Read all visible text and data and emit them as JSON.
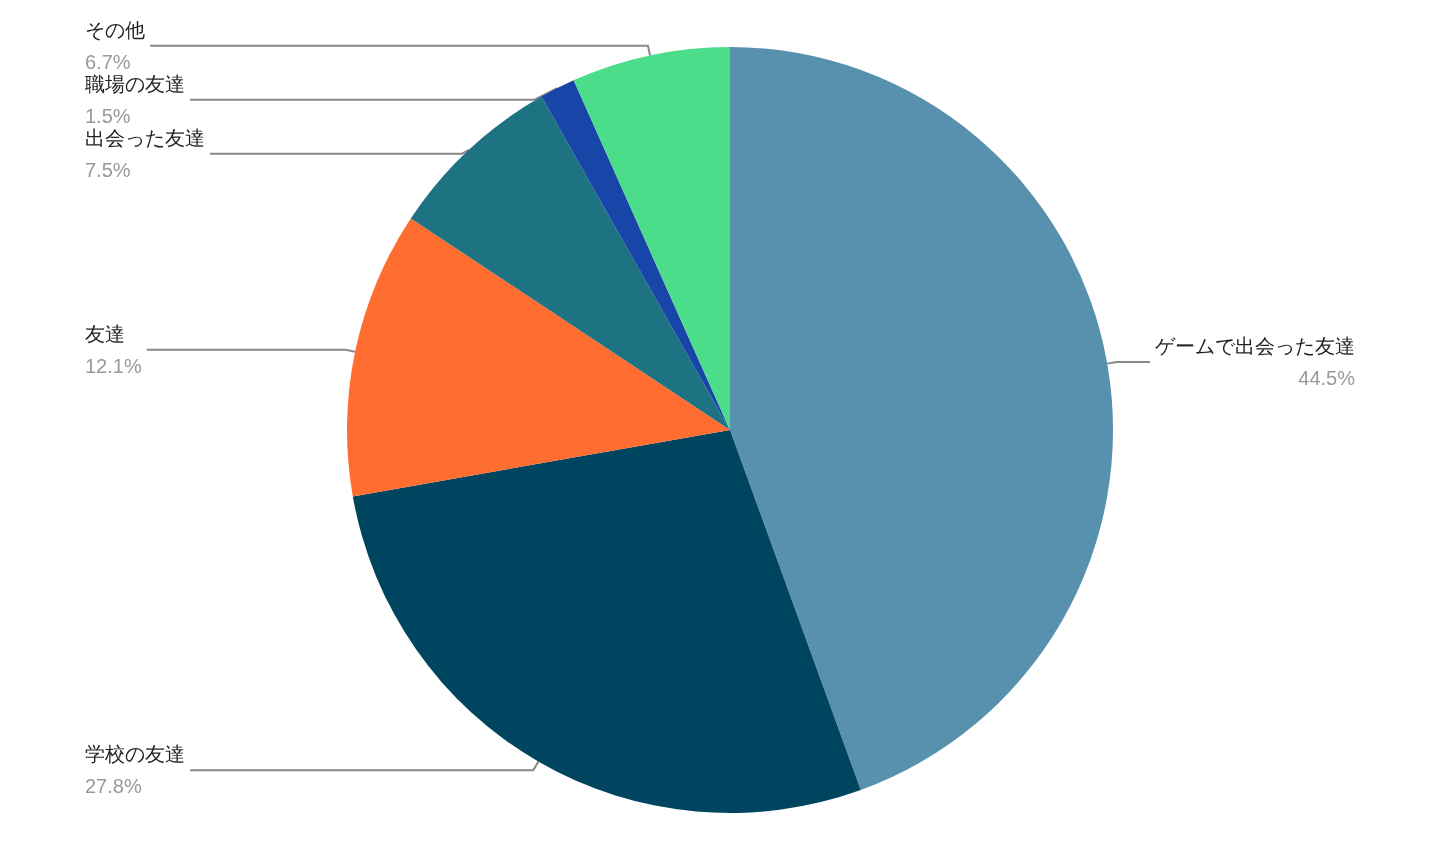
{
  "chart_data": {
    "type": "pie",
    "categories": [
      "ゲームで出会った友達",
      "学校の友達",
      "友達",
      "出会った友達",
      "職場の友達",
      "その他"
    ],
    "values": [
      44.5,
      27.8,
      12.1,
      7.5,
      1.5,
      6.7
    ],
    "value_labels": [
      "44.5%",
      "27.8%",
      "12.1%",
      "7.5%",
      "1.5%",
      "6.7%"
    ],
    "colors": [
      "#5891ae",
      "#00455f",
      "#ff6d31",
      "#1e7383",
      "#1745a8",
      "#4cdd8a"
    ],
    "legend": false
  }
}
